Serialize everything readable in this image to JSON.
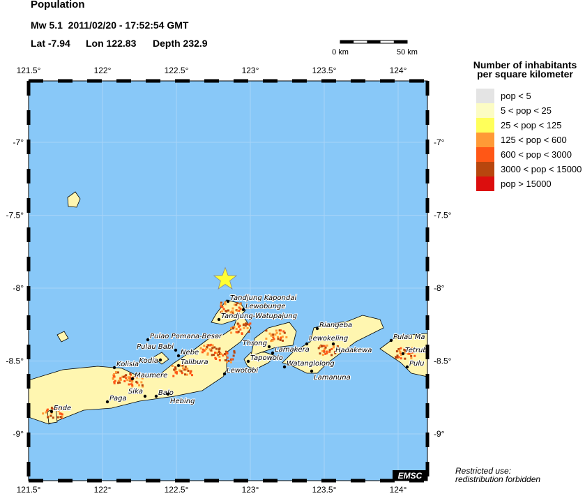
{
  "title": "Population",
  "event": {
    "line1": "Mw 5.1  2011/02/20 - 17:52:54 GMT",
    "lat": "Lat -7.94",
    "lon": "Lon 122.83",
    "depth": "Depth 232.9",
    "epicenter": {
      "lat": -7.94,
      "lon": 122.83
    }
  },
  "scale_bar": {
    "start": "0 km",
    "end": "50 km"
  },
  "axes": {
    "lon_ticks": [
      "121.5°",
      "122°",
      "122.5°",
      "123°",
      "123.5°",
      "124°"
    ],
    "lat_ticks": [
      "-7°",
      "-7.5°",
      "-8°",
      "-8.5°",
      "-9°"
    ]
  },
  "legend": {
    "title_line1": "Number of inhabitants",
    "title_line2": "per square kilometer",
    "items": [
      {
        "label": "pop < 5",
        "color": "#e4e4e4"
      },
      {
        "label": "5 < pop < 25",
        "color": "#fcfcc4"
      },
      {
        "label": "25 < pop < 125",
        "color": "#ffff5a"
      },
      {
        "label": "125 < pop < 600",
        "color": "#ff9a36"
      },
      {
        "label": "600 < pop < 3000",
        "color": "#ff5716"
      },
      {
        "label": "3000 < pop < 15000",
        "color": "#b8460e"
      },
      {
        "label": "pop > 15000",
        "color": "#dc0e0e"
      }
    ]
  },
  "places": [
    "Tandjung Kapondai",
    "Lewobunge",
    "Tandjung-Watupajung",
    "Pulao Pomana-Besor",
    "Pulau Babi",
    "Kodia",
    "Nebe",
    "Talibura",
    "Maumere",
    "Lewotobi",
    "Tapowolo",
    "Throng",
    "Lamakera",
    "Lewokeling",
    "Hadakewa",
    "Riangeba",
    "Watanglolong",
    "Lamanuna",
    "Pulau Ma",
    "Tetrub",
    "Pulu",
    "Kolisia",
    "Paga",
    "Sika",
    "Balo",
    "Hebing",
    "Ende"
  ],
  "watermark": "EMSC",
  "note_line1": "Restricted use:",
  "note_line2": "redistribution forbidden",
  "colors": {
    "sea": "#88c8f8",
    "land": "#fff6b0",
    "epicenter": "#ffff33"
  }
}
